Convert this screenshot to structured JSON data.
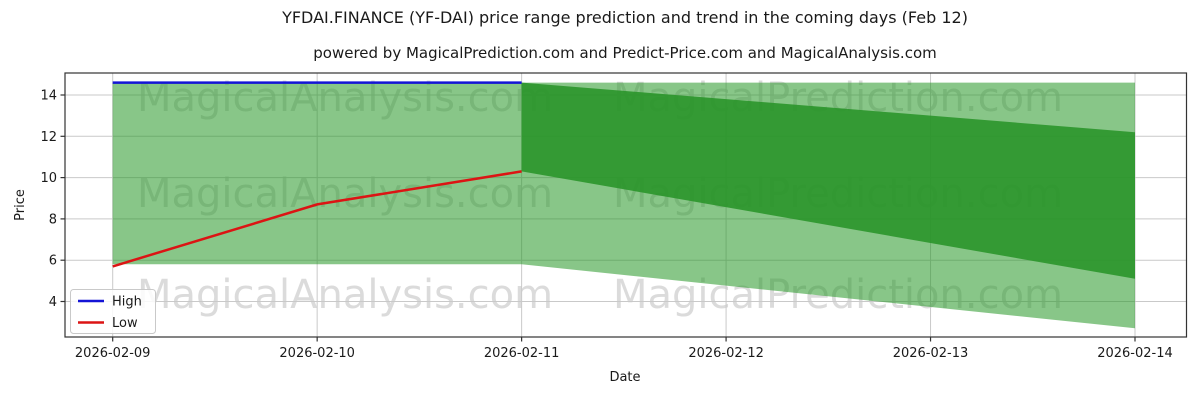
{
  "header": {
    "title": "YFDAI.FINANCE (YF-DAI) price range prediction and trend in the coming days (Feb 12)",
    "subtitle": "powered by MagicalPrediction.com and Predict-Price.com and MagicalAnalysis.com"
  },
  "watermarks": {
    "left": "MagicalAnalysis.com",
    "right": "MagicalPrediction.com"
  },
  "chart_data": {
    "type": "line",
    "title": "YFDAI.FINANCE (YF-DAI) price range prediction and trend in the coming days (Feb 12)",
    "xlabel": "Date",
    "ylabel": "Price",
    "x_tick_labels": [
      "2026-02-09",
      "2026-02-10",
      "2026-02-11",
      "2026-02-12",
      "2026-02-13",
      "2026-02-14"
    ],
    "y_tick_labels": [
      "14",
      "12",
      "10",
      "8",
      "6",
      "4"
    ],
    "y_tick_values": [
      14,
      12,
      10,
      8,
      6,
      4
    ],
    "ylim": [
      2.2,
      15.1
    ],
    "grid": true,
    "series": [
      {
        "name": "High",
        "color": "#1414d6",
        "points": [
          [
            "2026-02-09",
            14.6
          ],
          [
            "2026-02-10",
            14.6
          ],
          [
            "2026-02-11",
            14.6
          ]
        ]
      },
      {
        "name": "Low",
        "color": "#dc1414",
        "points": [
          [
            "2026-02-09",
            5.7
          ],
          [
            "2026-02-10",
            8.7
          ],
          [
            "2026-02-11",
            10.3
          ]
        ]
      }
    ],
    "bands": [
      {
        "name": "outer-range-band",
        "color": "rgba(38,152,38,0.55)",
        "points": [
          [
            "2026-02-09",
            14.6
          ],
          [
            "2026-02-14",
            14.6
          ],
          [
            "2026-02-14",
            2.7
          ],
          [
            "2026-02-11",
            5.8
          ],
          [
            "2026-02-09",
            5.8
          ]
        ]
      },
      {
        "name": "inner-trend-band",
        "color": "rgba(40,148,40,0.88)",
        "points": [
          [
            "2026-02-11",
            14.6
          ],
          [
            "2026-02-14",
            12.2
          ],
          [
            "2026-02-14",
            5.1
          ],
          [
            "2026-02-11",
            10.3
          ]
        ]
      }
    ],
    "legend": {
      "position": "lower left",
      "entries": [
        {
          "label": "High",
          "color": "#1414d6"
        },
        {
          "label": "Low",
          "color": "#dc1414"
        }
      ]
    }
  }
}
